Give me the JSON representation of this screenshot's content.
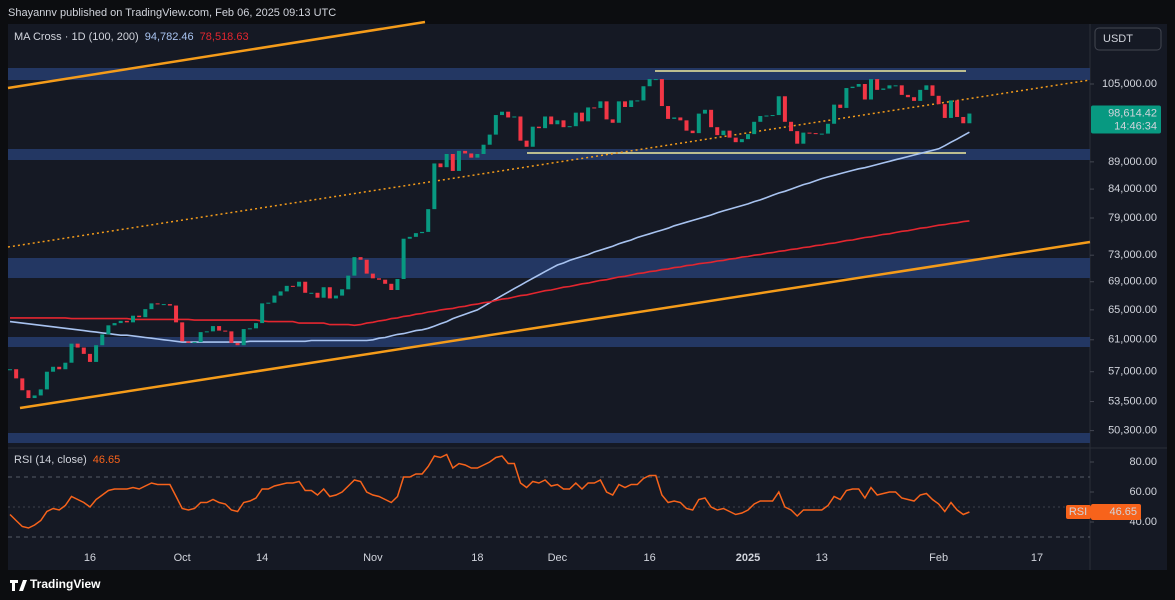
{
  "header": {
    "attribution": "Shayannv published on TradingView.com, Feb 06, 2025 09:13 UTC",
    "currency": "USDT",
    "footer": "TradingView"
  },
  "chart_data": [
    {
      "type": "candlestick",
      "title": "MA Cross · 1D (100, 200)",
      "log_scale": true,
      "up_color": "#089981",
      "down_color": "#f23645",
      "last_price_label": "98,614.42",
      "countdown": "14:46:34",
      "ylim": [
        48580,
        119265
      ],
      "yticks": [
        {
          "value": 105000,
          "label": "105,000.00"
        },
        {
          "value": 89000,
          "label": "89,000.00"
        },
        {
          "value": 84000,
          "label": "84,000.00"
        },
        {
          "value": 79000,
          "label": "79,000.00"
        },
        {
          "value": 73000,
          "label": "73,000.00"
        },
        {
          "value": 69000,
          "label": "69,000.00"
        },
        {
          "value": 65000,
          "label": "65,000.00"
        },
        {
          "value": 61000,
          "label": "61,000.00"
        },
        {
          "value": 57000,
          "label": "57,000.00"
        },
        {
          "value": 53500,
          "label": "53,500.00"
        },
        {
          "value": 50300,
          "label": "50,300.00"
        }
      ],
      "categories": [
        null,
        null,
        null,
        null,
        null,
        null,
        null,
        null,
        null,
        null,
        null,
        null,
        null,
        "16",
        null,
        null,
        null,
        null,
        null,
        null,
        null,
        null,
        null,
        null,
        null,
        null,
        null,
        null,
        "Oct",
        null,
        null,
        null,
        null,
        null,
        null,
        null,
        null,
        null,
        null,
        null,
        null,
        "14",
        null,
        null,
        null,
        null,
        null,
        null,
        null,
        null,
        null,
        null,
        null,
        null,
        null,
        null,
        null,
        null,
        null,
        "Nov",
        null,
        null,
        null,
        null,
        null,
        null,
        null,
        null,
        null,
        null,
        null,
        null,
        null,
        null,
        null,
        null,
        "18",
        null,
        null,
        null,
        null,
        null,
        null,
        null,
        null,
        null,
        null,
        null,
        null,
        "Dec",
        null,
        null,
        null,
        null,
        null,
        null,
        null,
        null,
        null,
        null,
        null,
        null,
        null,
        null,
        "16",
        null,
        null,
        null,
        null,
        null,
        null,
        null,
        null,
        null,
        null,
        null,
        null,
        null,
        null,
        null,
        "2025",
        null,
        null,
        null,
        null,
        null,
        null,
        null,
        null,
        null,
        null,
        null,
        "13",
        null,
        null,
        null,
        null,
        null,
        null,
        null,
        null,
        null,
        null,
        null,
        null,
        null,
        null,
        null,
        null,
        null,
        null,
        "Feb",
        null,
        null,
        null,
        null,
        null,
        null,
        null,
        null,
        null,
        null,
        null,
        null,
        null,
        null,
        null,
        "17",
        null,
        null,
        null,
        null,
        null,
        null,
        null,
        null
      ],
      "values": [
        57300,
        56200,
        54800,
        53900,
        54200,
        54900,
        57000,
        57600,
        57300,
        58100,
        60500,
        60000,
        59200,
        58200,
        60300,
        61700,
        62900,
        63200,
        63500,
        63300,
        64200,
        64000,
        65100,
        65900,
        65800,
        65800,
        65600,
        63300,
        60800,
        60600,
        60700,
        62000,
        62100,
        62800,
        62200,
        62100,
        60600,
        60300,
        62400,
        62500,
        63200,
        65900,
        66000,
        67000,
        67600,
        68400,
        68300,
        69000,
        67400,
        67400,
        66700,
        68200,
        66600,
        67000,
        67900,
        69900,
        72700,
        72300,
        70200,
        69500,
        69300,
        68700,
        67800,
        69400,
        75600,
        75900,
        76500,
        76700,
        80500,
        88700,
        88000,
        90500,
        87300,
        91100,
        90600,
        89800,
        90500,
        92300,
        94300,
        98300,
        99000,
        97800,
        98000,
        93100,
        91900,
        95900,
        95600,
        98000,
        96400,
        97200,
        95800,
        96000,
        98800,
        97000,
        99900,
        99800,
        101200,
        97400,
        96700,
        101200,
        100000,
        101400,
        101400,
        104500,
        106100,
        106100,
        100200,
        97500,
        97800,
        97200,
        95100,
        94600,
        98600,
        99400,
        95800,
        94200,
        95100,
        93700,
        92800,
        93400,
        94400,
        96900,
        98100,
        98200,
        98300,
        102300,
        96900,
        95000,
        92500,
        94700,
        94600,
        94500,
        94500,
        96500,
        100500,
        99800,
        104100,
        104400,
        105000,
        101600,
        106100,
        103700,
        104000,
        104700,
        104700,
        102600,
        102100,
        101300,
        103700,
        104700,
        102400,
        100600,
        97700,
        101400,
        97900,
        96600,
        98614.42,
        null,
        null,
        null,
        null,
        null,
        null,
        null,
        null,
        null,
        null,
        null,
        null,
        null,
        null,
        null,
        null,
        null,
        null,
        null
      ],
      "overlays": [
        {
          "color": "#a8c3f0",
          "legend_value": "94,782.46",
          "values": [
            63400,
            63300,
            63200,
            63100,
            63000,
            62900,
            62800,
            62700,
            62600,
            62500,
            62400,
            62300,
            62200,
            62100,
            62000,
            61900,
            61800,
            61700,
            61600,
            61600,
            61500,
            61400,
            61300,
            61200,
            61100,
            61000,
            60900,
            60800,
            60700,
            60700,
            60700,
            60700,
            60700,
            60700,
            60700,
            60700,
            60700,
            60700,
            60700,
            60800,
            60800,
            60800,
            60800,
            60800,
            60800,
            60800,
            60800,
            60800,
            60800,
            60900,
            60900,
            60900,
            60900,
            60900,
            60900,
            60900,
            60900,
            60900,
            60900,
            61000,
            61200,
            61300,
            61500,
            61700,
            61800,
            62000,
            62200,
            62300,
            62500,
            62800,
            63100,
            63400,
            63800,
            64100,
            64400,
            64700,
            65000,
            65500,
            66000,
            66500,
            67000,
            67500,
            68000,
            68500,
            69000,
            69500,
            70000,
            70500,
            71000,
            71500,
            71800,
            72200,
            72500,
            72800,
            73100,
            73500,
            73800,
            74100,
            74400,
            74800,
            75100,
            75400,
            75800,
            76100,
            76400,
            76700,
            77000,
            77300,
            77700,
            78000,
            78300,
            78600,
            78900,
            79200,
            79500,
            79900,
            80200,
            80500,
            80800,
            81100,
            81400,
            81800,
            82100,
            82500,
            82900,
            83300,
            83600,
            84000,
            84400,
            84800,
            85100,
            85500,
            85900,
            86200,
            86500,
            86800,
            87100,
            87400,
            87700,
            87900,
            88200,
            88500,
            88800,
            89100,
            89400,
            89700,
            90000,
            90300,
            90600,
            90900,
            91200,
            91500,
            92100,
            92800,
            93400,
            94100,
            94782.46,
            null,
            null,
            null,
            null,
            null,
            null,
            null,
            null,
            null,
            null,
            null,
            null,
            null,
            null,
            null,
            null,
            null,
            null,
            null
          ]
        },
        {
          "color": "#e3262f",
          "legend_value": "78,518.63",
          "values": [
            63900,
            63900,
            63900,
            63900,
            63900,
            63900,
            63900,
            63900,
            63900,
            63900,
            63800,
            63800,
            63800,
            63800,
            63800,
            63800,
            63800,
            63800,
            63800,
            63800,
            63700,
            63700,
            63700,
            63700,
            63700,
            63700,
            63700,
            63700,
            63700,
            63700,
            63600,
            63600,
            63600,
            63600,
            63600,
            63600,
            63600,
            63600,
            63600,
            63600,
            63600,
            63500,
            63400,
            63400,
            63400,
            63400,
            63400,
            63200,
            63200,
            63200,
            63200,
            63200,
            63000,
            63000,
            63000,
            63000,
            62900,
            63000,
            63200,
            63300,
            63500,
            63600,
            63800,
            63900,
            64100,
            64200,
            64400,
            64500,
            64700,
            64800,
            65000,
            65100,
            65200,
            65400,
            65500,
            65700,
            65800,
            66000,
            66100,
            66300,
            66500,
            66600,
            66800,
            67000,
            67100,
            67300,
            67500,
            67700,
            67800,
            68000,
            68200,
            68300,
            68500,
            68700,
            68800,
            69000,
            69200,
            69300,
            69500,
            69700,
            69800,
            70000,
            70200,
            70300,
            70500,
            70600,
            70800,
            70900,
            71100,
            71200,
            71400,
            71500,
            71700,
            71800,
            71900,
            72100,
            72200,
            72400,
            72500,
            72700,
            72800,
            73000,
            73100,
            73300,
            73400,
            73600,
            73700,
            73900,
            74000,
            74200,
            74300,
            74500,
            74600,
            74800,
            74900,
            75100,
            75300,
            75400,
            75600,
            75800,
            75900,
            76100,
            76300,
            76400,
            76600,
            76800,
            76900,
            77100,
            77300,
            77400,
            77600,
            77800,
            77900,
            78100,
            78200,
            78400,
            78518.63,
            null,
            null,
            null,
            null,
            null,
            null,
            null,
            null,
            null,
            null,
            null,
            null,
            null,
            null,
            null,
            null,
            null,
            null,
            null
          ]
        }
      ]
    },
    {
      "type": "line",
      "title": "RSI (14, close)",
      "color": "#f7631b",
      "axis_tag": "RSI",
      "legend_value": "46.65",
      "ylim": [
        28,
        88
      ],
      "yticks": [
        {
          "value": 80,
          "label": "80.00"
        },
        {
          "value": 60,
          "label": "60.00"
        },
        {
          "value": 40,
          "label": "40.00"
        }
      ],
      "values": [
        45,
        41,
        37,
        36,
        38,
        41,
        47,
        49,
        48,
        51,
        57,
        55,
        53,
        50,
        55,
        58,
        61,
        62,
        62,
        62,
        63,
        62,
        64,
        66,
        65,
        65,
        65,
        57,
        49,
        48,
        49,
        53,
        53,
        55,
        53,
        52,
        48,
        47,
        53,
        54,
        56,
        62,
        62,
        64,
        65,
        66,
        66,
        67,
        61,
        61,
        58,
        62,
        57,
        58,
        60,
        64,
        68,
        67,
        60,
        58,
        57,
        55,
        53,
        57,
        70,
        70,
        72,
        72,
        77,
        84,
        83,
        85,
        76,
        79,
        78,
        76,
        76,
        78,
        80,
        83,
        84,
        79,
        79,
        66,
        63,
        67,
        66,
        68,
        64,
        65,
        62,
        62,
        66,
        62,
        66,
        66,
        68,
        60,
        58,
        65,
        63,
        65,
        65,
        69,
        71,
        71,
        58,
        53,
        54,
        53,
        49,
        48,
        55,
        56,
        50,
        48,
        49,
        47,
        45,
        46,
        48,
        52,
        54,
        54,
        54,
        60,
        50,
        48,
        44,
        48,
        48,
        48,
        48,
        51,
        57,
        55,
        61,
        62,
        62,
        56,
        63,
        58,
        59,
        60,
        60,
        56,
        55,
        54,
        58,
        59,
        55,
        52,
        47,
        53,
        48,
        45,
        46.65,
        null,
        null,
        null,
        null,
        null,
        null,
        null,
        null,
        null,
        null,
        null,
        null,
        null,
        null,
        null,
        null,
        null,
        null,
        null
      ]
    }
  ]
}
